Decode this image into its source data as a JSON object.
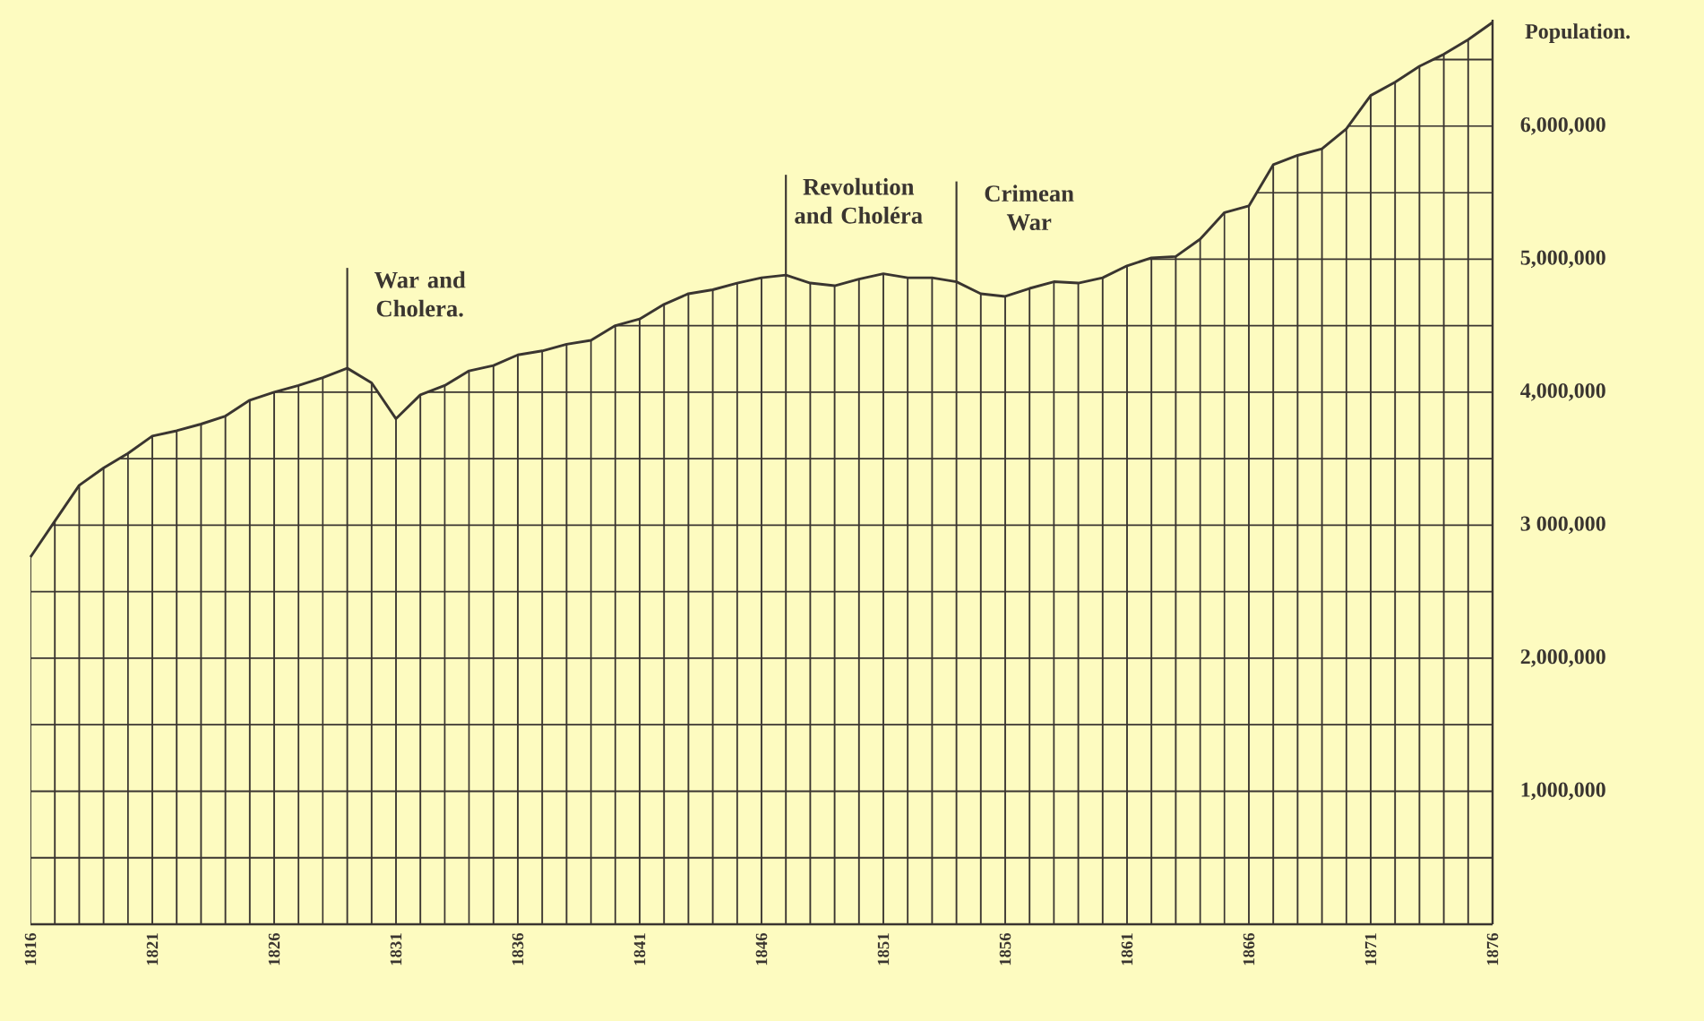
{
  "chart_data": {
    "type": "line",
    "ylabel": "Population.",
    "x": [
      1816,
      1817,
      1818,
      1819,
      1820,
      1821,
      1822,
      1823,
      1824,
      1825,
      1826,
      1827,
      1828,
      1829,
      1830,
      1831,
      1832,
      1833,
      1834,
      1835,
      1836,
      1837,
      1838,
      1839,
      1840,
      1841,
      1842,
      1843,
      1844,
      1845,
      1846,
      1847,
      1848,
      1849,
      1850,
      1851,
      1852,
      1853,
      1854,
      1855,
      1856,
      1857,
      1858,
      1859,
      1860,
      1861,
      1862,
      1863,
      1864,
      1865,
      1866,
      1867,
      1868,
      1869,
      1870,
      1871,
      1872,
      1873,
      1874,
      1875,
      1876
    ],
    "values": [
      2760000,
      3030000,
      3300000,
      3430000,
      3540000,
      3670000,
      3710000,
      3760000,
      3820000,
      3940000,
      4000000,
      4050000,
      4110000,
      4180000,
      4070000,
      3800000,
      3980000,
      4050000,
      4160000,
      4200000,
      4280000,
      4310000,
      4360000,
      4390000,
      4500000,
      4550000,
      4660000,
      4740000,
      4770000,
      4820000,
      4860000,
      4880000,
      4820000,
      4800000,
      4850000,
      4890000,
      4860000,
      4860000,
      4830000,
      4740000,
      4720000,
      4780000,
      4830000,
      4820000,
      4860000,
      4950000,
      5010000,
      5020000,
      5150000,
      5350000,
      5400000,
      5710000,
      5780000,
      5830000,
      5980000,
      6230000,
      6330000,
      6450000,
      6540000,
      6650000,
      6780000
    ],
    "color": "#3a3530",
    "grid": true,
    "xlim": [
      1816,
      1876
    ],
    "xticks": [
      1816,
      {
        "value": 1817,
        "label": null
      },
      {
        "value": 1818,
        "label": null
      },
      {
        "value": 1819,
        "label": null
      },
      {
        "value": 1820,
        "label": null
      },
      1821,
      {
        "value": 1822,
        "label": null
      },
      {
        "value": 1823,
        "label": null
      },
      {
        "value": 1824,
        "label": null
      },
      {
        "value": 1825,
        "label": null
      },
      1826,
      {
        "value": 1827,
        "label": null
      },
      {
        "value": 1828,
        "label": null
      },
      {
        "value": 1829,
        "label": null
      },
      {
        "value": 1830,
        "label": null
      },
      1831,
      {
        "value": 1832,
        "label": null
      },
      {
        "value": 1833,
        "label": null
      },
      {
        "value": 1834,
        "label": null
      },
      {
        "value": 1835,
        "label": null
      },
      1836,
      {
        "value": 1837,
        "label": null
      },
      {
        "value": 1838,
        "label": null
      },
      {
        "value": 1839,
        "label": null
      },
      {
        "value": 1840,
        "label": null
      },
      1841,
      {
        "value": 1842,
        "label": null
      },
      {
        "value": 1843,
        "label": null
      },
      {
        "value": 1844,
        "label": null
      },
      {
        "value": 1845,
        "label": null
      },
      1846,
      {
        "value": 1847,
        "label": null
      },
      {
        "value": 1848,
        "label": null
      },
      {
        "value": 1849,
        "label": null
      },
      {
        "value": 1850,
        "label": null
      },
      1851,
      {
        "value": 1852,
        "label": null
      },
      {
        "value": 1853,
        "label": null
      },
      {
        "value": 1854,
        "label": null
      },
      {
        "value": 1855,
        "label": null
      },
      1856,
      {
        "value": 1857,
        "label": null
      },
      {
        "value": 1858,
        "label": null
      },
      {
        "value": 1859,
        "label": null
      },
      {
        "value": 1860,
        "label": null
      },
      1861,
      {
        "value": 1862,
        "label": null
      },
      {
        "value": 1863,
        "label": null
      },
      {
        "value": 1864,
        "label": null
      },
      {
        "value": 1865,
        "label": null
      },
      1866,
      {
        "value": 1867,
        "label": null
      },
      {
        "value": 1868,
        "label": null
      },
      {
        "value": 1869,
        "label": null
      },
      {
        "value": 1870,
        "label": null
      },
      1871,
      {
        "value": 1872,
        "label": null
      },
      {
        "value": 1873,
        "label": null
      },
      {
        "value": 1874,
        "label": null
      },
      {
        "value": 1875,
        "label": null
      },
      1876
    ],
    "ylim": [
      0,
      6800000
    ],
    "yticks": [
      {
        "value": 500000,
        "label": null
      },
      {
        "value": 1000000,
        "label": "1,000,000"
      },
      {
        "value": 1500000,
        "label": null
      },
      {
        "value": 2000000,
        "label": "2,000,000"
      },
      {
        "value": 2500000,
        "label": null
      },
      {
        "value": 3000000,
        "label": "3 000,000"
      },
      {
        "value": 3500000,
        "label": null
      },
      {
        "value": 4000000,
        "label": "4,000,000"
      },
      {
        "value": 4500000,
        "label": null
      },
      {
        "value": 5000000,
        "label": "5,000,000"
      },
      {
        "value": 5500000,
        "label": null
      },
      {
        "value": 6000000,
        "label": "6,000,000"
      },
      {
        "value": 6500000,
        "label": null
      }
    ],
    "annotations": [
      {
        "text": "War and Cholera.",
        "x": 1829,
        "y": 4180000
      },
      {
        "text": "Revolution and Choléra",
        "x": 1847,
        "y": 4880000
      },
      {
        "text": "Crimean War",
        "x": 1854,
        "y": 4830000
      }
    ]
  }
}
